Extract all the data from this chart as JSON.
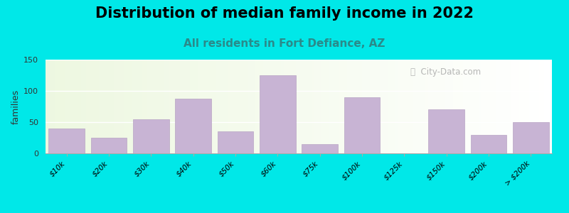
{
  "title": "Distribution of median family income in 2022",
  "subtitle": "All residents in Fort Defiance, AZ",
  "ylabel": "families",
  "categories": [
    "$10k",
    "$20k",
    "$30k",
    "$40k",
    "$50k",
    "$60k",
    "$75k",
    "$100k",
    "$125k",
    "$150k",
    "$200k",
    "> $200k"
  ],
  "values": [
    40,
    25,
    55,
    88,
    35,
    125,
    15,
    90,
    0,
    70,
    30,
    50
  ],
  "bar_color": "#c8b4d4",
  "bar_edge_color": "#b8a4c4",
  "ylim": [
    0,
    150
  ],
  "yticks": [
    0,
    50,
    100,
    150
  ],
  "background_color": "#00e8e8",
  "title_fontsize": 15,
  "subtitle_fontsize": 11,
  "subtitle_color": "#2a8a8a",
  "watermark": "City-Data.com"
}
